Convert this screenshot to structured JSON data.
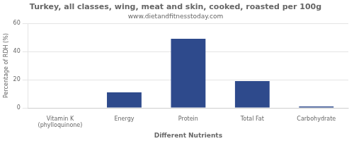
{
  "chart_data": {
    "type": "bar",
    "title": "Turkey, all classes, wing, meat and skin, cooked, roasted per 100g",
    "subtitle": "www.dietandfitnesstoday.com",
    "xlabel": "Different Nutrients",
    "ylabel": "Percentage of RDH (%)",
    "categories": [
      "Vitamin K (phylloquinone)",
      "Energy",
      "Protein",
      "Total Fat",
      "Carbohydrate"
    ],
    "values": [
      0,
      11,
      49,
      19,
      1
    ],
    "color": "#2e4a8c",
    "ylim": [
      0,
      60
    ],
    "yticks": [
      0,
      20,
      40,
      60
    ],
    "grid": true
  }
}
